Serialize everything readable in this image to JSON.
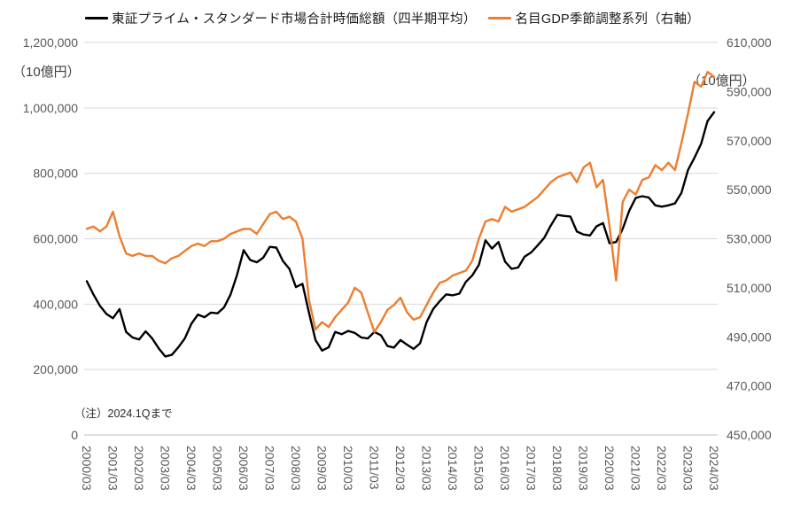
{
  "note": "（注）2024.1Qまで",
  "chart_data": {
    "type": "line",
    "title": "",
    "grid": "horizontal",
    "legend_position": "top-center",
    "x_tick_labels": [
      "2000/03",
      "2001/03",
      "2002/03",
      "2003/03",
      "2004/03",
      "2005/03",
      "2006/03",
      "2007/03",
      "2008/03",
      "2009/03",
      "2010/03",
      "2011/03",
      "2012/03",
      "2013/03",
      "2014/03",
      "2015/03",
      "2016/03",
      "2017/03",
      "2018/03",
      "2019/03",
      "2020/03",
      "2021/03",
      "2022/03",
      "2023/03",
      "2024/03"
    ],
    "points_per_tick": 4,
    "x_frequency": "quarterly",
    "left_axis": {
      "unit": "（10億円）",
      "min": 0,
      "max": 1200000,
      "step": 200000,
      "tick_labels": [
        "0",
        "200,000",
        "400,000",
        "600,000",
        "800,000",
        "1,000,000",
        "1,200,000"
      ]
    },
    "right_axis": {
      "unit": "（10億円）",
      "min": 450000,
      "max": 610000,
      "step": 20000,
      "tick_labels": [
        "450,000",
        "470,000",
        "490,000",
        "510,000",
        "530,000",
        "550,000",
        "570,000",
        "590,000",
        "610,000"
      ]
    },
    "series": [
      {
        "name": "東証プライム・スタンダード市場合計時価総額（四半期平均）",
        "axis": "left",
        "color": "#000000",
        "values": [
          470000,
          430000,
          395000,
          370000,
          357000,
          385000,
          315000,
          298000,
          292000,
          317000,
          295000,
          265000,
          240000,
          245000,
          268000,
          295000,
          340000,
          368000,
          360000,
          374000,
          372000,
          390000,
          430000,
          490000,
          565000,
          535000,
          528000,
          542000,
          575000,
          573000,
          532000,
          508000,
          452000,
          462000,
          373000,
          290000,
          258000,
          268000,
          315000,
          308000,
          318000,
          312000,
          298000,
          295000,
          315000,
          305000,
          272000,
          267000,
          290000,
          276000,
          263000,
          280000,
          345000,
          385000,
          409000,
          430000,
          427000,
          432000,
          468000,
          488000,
          520000,
          595000,
          570000,
          590000,
          530000,
          508000,
          512000,
          545000,
          558000,
          580000,
          603000,
          640000,
          673000,
          670000,
          668000,
          622000,
          613000,
          610000,
          638000,
          648000,
          586000,
          590000,
          630000,
          685000,
          725000,
          730000,
          726000,
          702000,
          698000,
          702000,
          708000,
          740000,
          810000,
          848000,
          890000,
          960000,
          987000
        ]
      },
      {
        "name": "名目GDP季節調整系列（右軸）",
        "axis": "right",
        "color": "#ED7D31",
        "values": [
          534000,
          535000,
          533000,
          535000,
          541000,
          531000,
          524000,
          523000,
          524000,
          523000,
          523000,
          521000,
          520000,
          522000,
          523000,
          525000,
          527000,
          528000,
          527000,
          529000,
          529000,
          530000,
          532000,
          533000,
          534000,
          534000,
          532000,
          536000,
          540000,
          541000,
          538000,
          539000,
          537000,
          530000,
          505000,
          493000,
          496000,
          494000,
          498000,
          501000,
          504000,
          510000,
          508000,
          500000,
          492000,
          496000,
          501000,
          503000,
          506000,
          500000,
          497000,
          498000,
          503000,
          508000,
          512000,
          513000,
          515000,
          516000,
          517000,
          521000,
          530000,
          537000,
          538000,
          537000,
          543000,
          541000,
          542000,
          543000,
          545000,
          547000,
          550000,
          553000,
          555000,
          556000,
          557000,
          553000,
          559000,
          561000,
          551000,
          554000,
          535000,
          513000,
          545000,
          550000,
          548000,
          554000,
          555000,
          560000,
          558000,
          561000,
          558000,
          569000,
          581000,
          594000,
          592000,
          598000,
          596000
        ]
      }
    ],
    "colors": {
      "gridline": "#d9d9d9",
      "axis_line": "#bfbfbf",
      "tick_text": "#595959"
    }
  }
}
